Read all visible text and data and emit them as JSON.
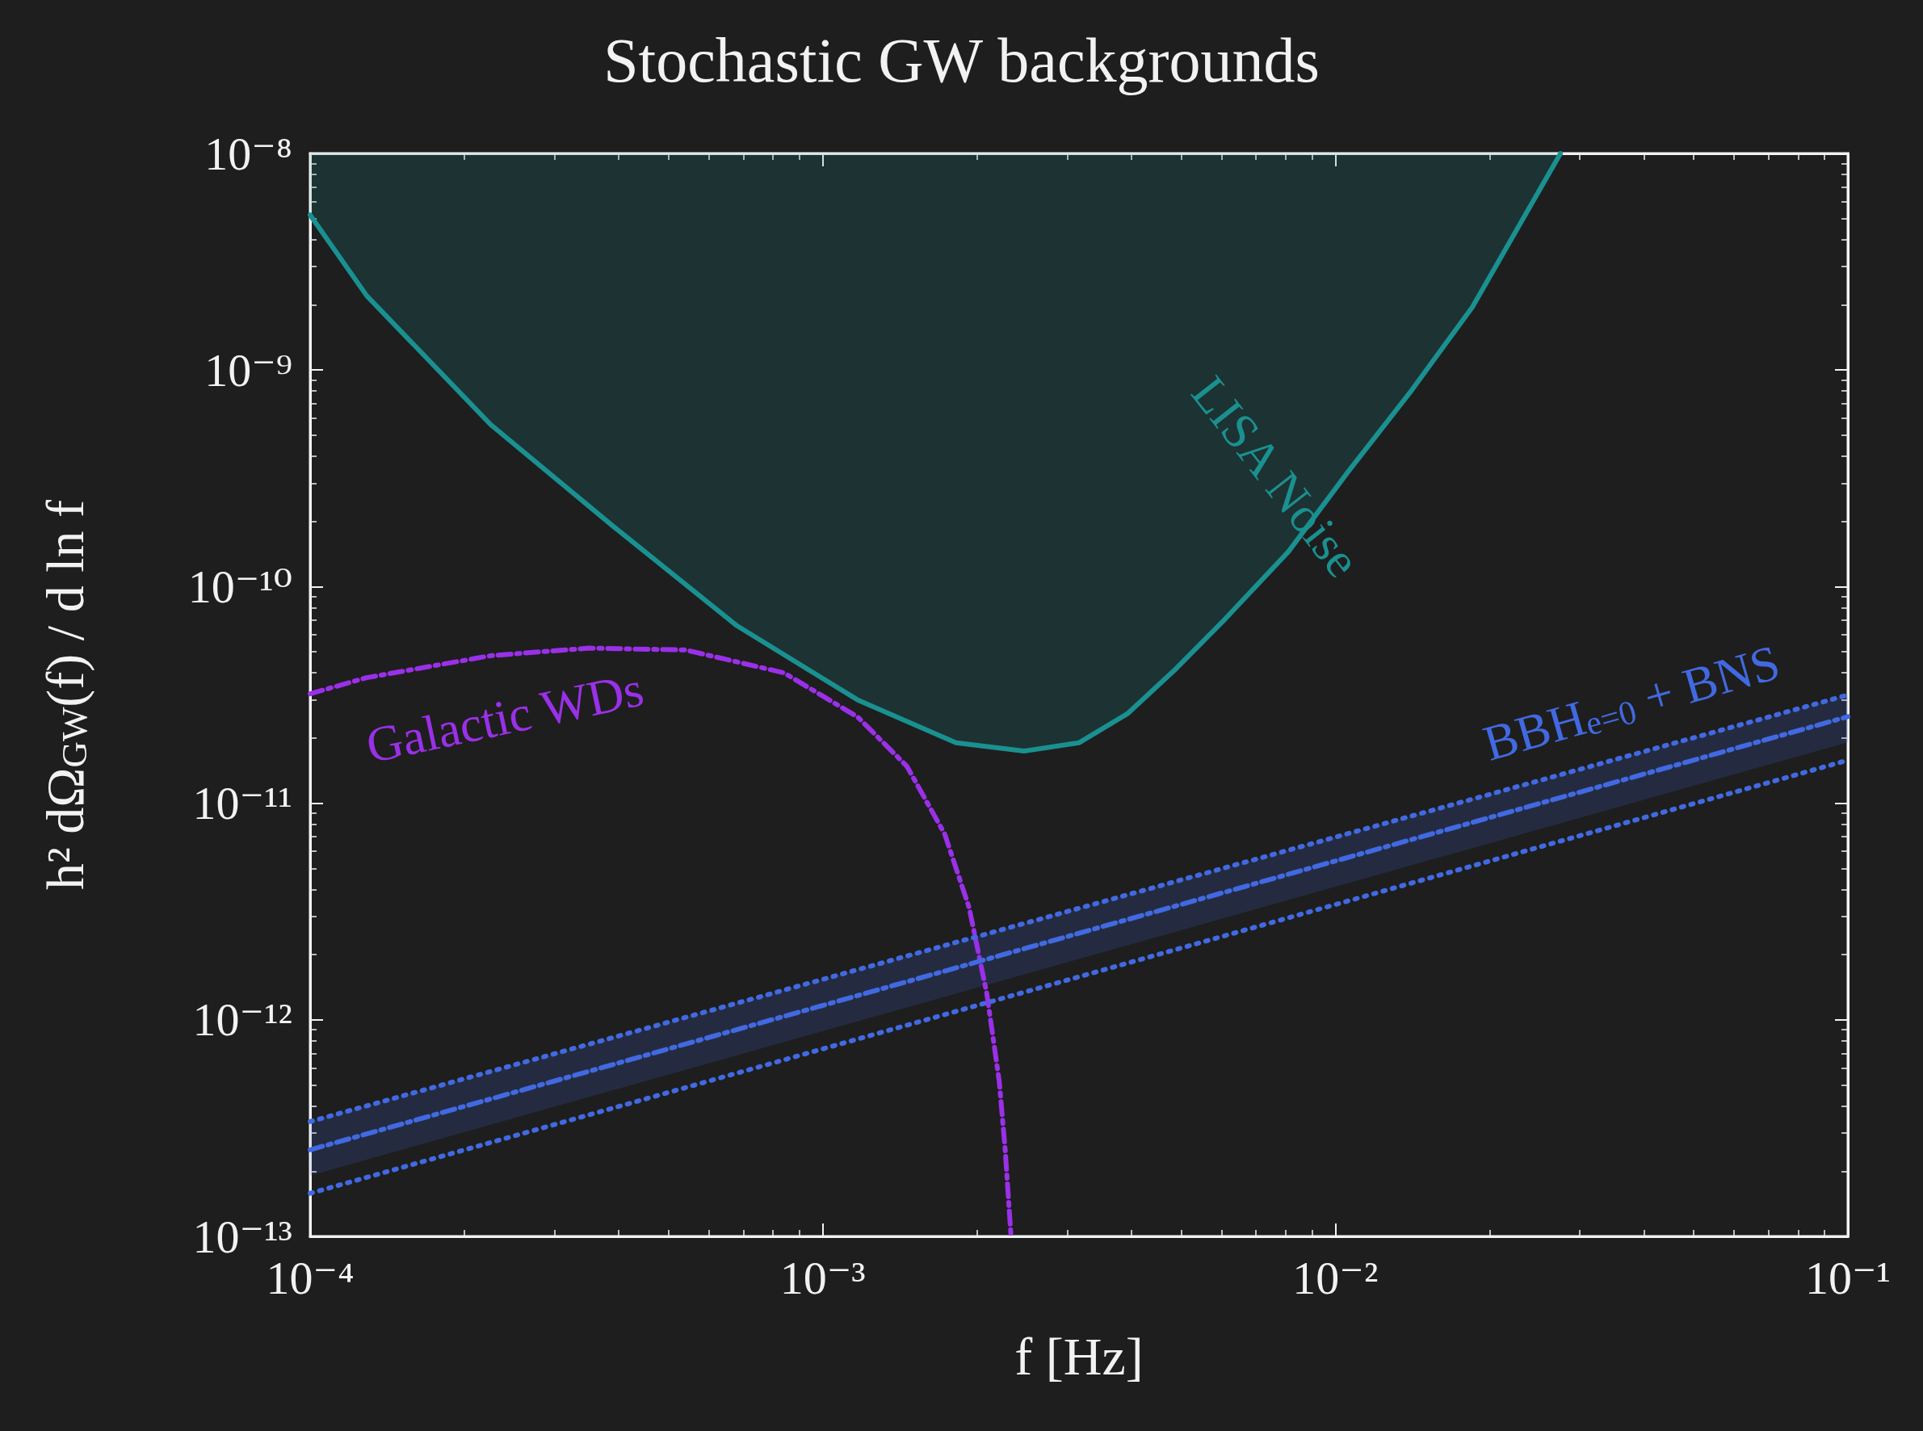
{
  "chart_data": {
    "type": "line",
    "title": "Stochastic GW backgrounds",
    "xlabel": "f [Hz]",
    "ylabel": "h² dΩ$_{GW}$(f) / d ln f",
    "log": "xy",
    "grid": false,
    "legend": false,
    "marker": "none",
    "xlim": [
      0.0001,
      0.1
    ],
    "ylim": [
      1e-13,
      1e-08
    ],
    "xticks": [
      {
        "value": 0.0001,
        "label": "10⁻⁴"
      },
      {
        "value": 0.001,
        "label": "10⁻³"
      },
      {
        "value": 0.01,
        "label": "10⁻²"
      },
      {
        "value": 0.1,
        "label": "10⁻¹"
      }
    ],
    "yticks": [
      {
        "value": 1e-13,
        "label": "10⁻¹³"
      },
      {
        "value": 1e-12,
        "label": "10⁻¹²"
      },
      {
        "value": 1e-11,
        "label": "10⁻¹¹"
      },
      {
        "value": 1e-10,
        "label": "10⁻¹⁰"
      },
      {
        "value": 1e-09,
        "label": "10⁻⁹"
      },
      {
        "value": 1e-08,
        "label": "10⁻⁸"
      }
    ],
    "series": [
      {
        "name": "LISA Noise",
        "color": "#1a9090",
        "line_style": "solid",
        "x": [
          0.0001,
          0.000129,
          0.000225,
          0.00039,
          0.00068,
          0.00117,
          0.00182,
          0.00247,
          0.00316,
          0.00394,
          0.0049,
          0.0061,
          0.0081,
          0.0106,
          0.014,
          0.0185,
          0.0275
        ],
        "values": [
          5.2e-09,
          2.2e-09,
          5.6e-10,
          1.9e-10,
          6.6e-11,
          3e-11,
          1.9e-11,
          1.74e-11,
          1.9e-11,
          2.6e-11,
          4.2e-11,
          7.1e-11,
          1.45e-10,
          3.4e-10,
          7.9e-10,
          1.95e-09,
          1e-08
        ],
        "lower": [
          5.2e-09,
          2.2e-09,
          5.6e-10,
          1.9e-10,
          6.6e-11,
          3e-11,
          1.9e-11,
          1.74e-11,
          1.9e-11,
          2.6e-11,
          4.2e-11,
          7.1e-11,
          1.45e-10,
          3.4e-10,
          7.9e-10,
          1.95e-09,
          1e-08
        ],
        "upper": [
          1e-08,
          1e-08,
          1e-08,
          1e-08,
          1e-08,
          1e-08,
          1e-08,
          1e-08,
          1e-08,
          1e-08,
          1e-08,
          1e-08,
          1e-08,
          1e-08,
          1e-08,
          1e-08,
          1e-08
        ]
      },
      {
        "name": "Galactic WDs",
        "color": "#9a30e8",
        "line_style": "dashed",
        "x": [
          0.0001,
          0.000129,
          0.000225,
          0.00035,
          0.00054,
          0.00084,
          0.00117,
          0.00146,
          0.00173,
          0.00193,
          0.00209,
          0.00221,
          0.00227,
          0.00233
        ],
        "values": [
          3.2e-11,
          3.8e-11,
          4.8e-11,
          5.2e-11,
          5.1e-11,
          4e-11,
          2.5e-11,
          1.48e-11,
          7.2e-12,
          3.3e-12,
          1.32e-12,
          5.2e-13,
          2.5e-13,
          1e-13
        ]
      },
      {
        "name": "BBH$_{e=0}$ + BNS",
        "color": "#4169e1",
        "line_style": "dashed",
        "x": [
          0.0001,
          0.1
        ],
        "values": [
          2.51e-13,
          2.51e-11
        ],
        "lower": [
          1.91e-13,
          1.91e-11
        ],
        "upper": [
          3.39e-13,
          3.16e-11
        ]
      },
      {
        "color": "#4169e1",
        "line_style": "dotted",
        "x": [
          0.0001,
          0.1
        ],
        "values": [
          3.39e-13,
          3.16e-11
        ]
      },
      {
        "color": "#4169e1",
        "line_style": "dotted",
        "x": [
          0.0001,
          0.1
        ],
        "values": [
          1.58e-13,
          1.58e-11
        ]
      }
    ]
  }
}
